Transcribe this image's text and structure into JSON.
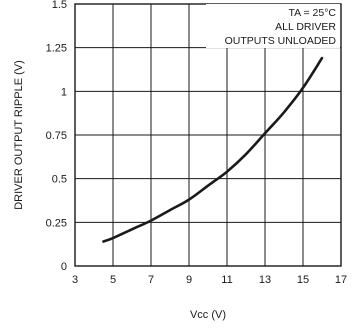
{
  "chart_data": {
    "type": "line",
    "title": "",
    "xlabel": "Vᴄᴄ (V)",
    "ylabel": "DRIVER OUTPUT RIPPLE (V)",
    "xlim": [
      3,
      17
    ],
    "ylim": [
      0,
      1.5
    ],
    "x_ticks": [
      3,
      5,
      7,
      9,
      11,
      13,
      15,
      17
    ],
    "y_ticks": [
      0,
      0.25,
      0.5,
      0.75,
      1,
      1.25,
      1.5
    ],
    "x_tick_labels": [
      "3",
      "5",
      "7",
      "9",
      "11",
      "13",
      "15",
      "17"
    ],
    "y_tick_labels": [
      "0",
      "0.25",
      "0.5",
      "0.75",
      "1",
      "1.25",
      "1.5"
    ],
    "grid": true,
    "annotations": [
      "TA = 25°C",
      "ALL DRIVER",
      "OUTPUTS UNLOADED"
    ],
    "series": [
      {
        "x": [
          4.5,
          5,
          6,
          7,
          8,
          9,
          10,
          11,
          12,
          13,
          14,
          15,
          16
        ],
        "y": [
          0.14,
          0.16,
          0.21,
          0.26,
          0.32,
          0.38,
          0.46,
          0.54,
          0.64,
          0.76,
          0.88,
          1.02,
          1.19
        ]
      }
    ]
  }
}
